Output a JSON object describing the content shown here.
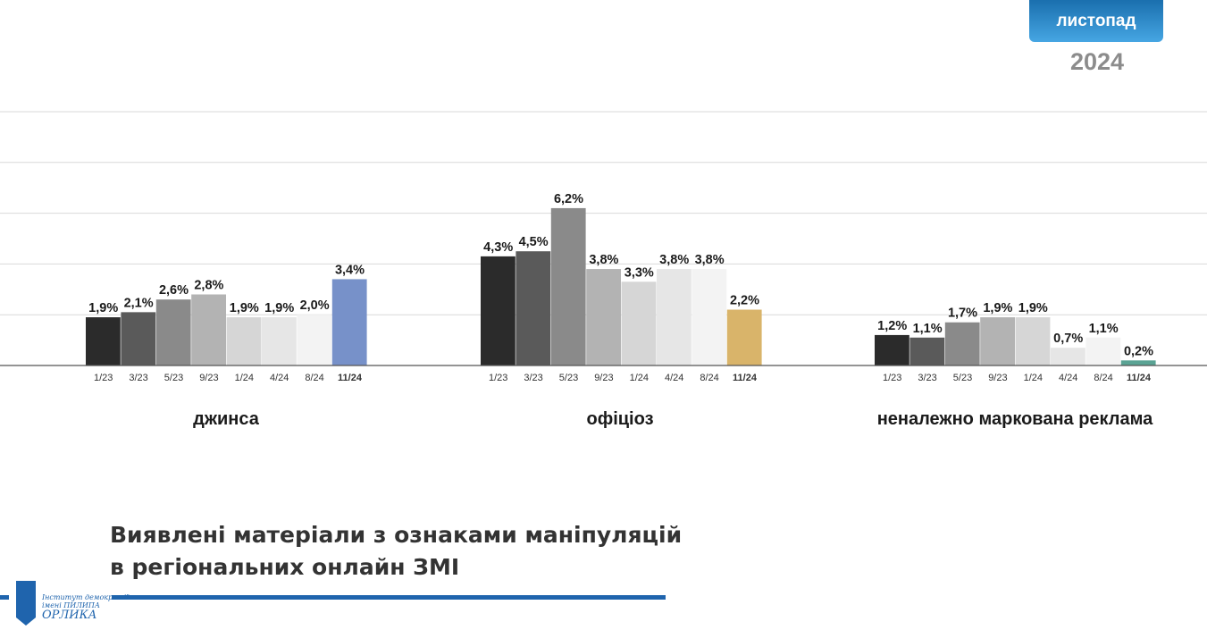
{
  "header": {
    "month": "листопад",
    "year": "2024"
  },
  "title": {
    "line1": "Виявлені матеріали з ознаками маніпуляцій",
    "line2": "в регіональних онлайн ЗМІ"
  },
  "logo": {
    "line1": "Інститут демократії",
    "line2": "імені ПИЛИПА",
    "line3": "ОРЛИКА"
  },
  "chart_data": {
    "type": "bar",
    "title": "Виявлені матеріали з ознаками маніпуляцій в регіональних онлайн ЗМІ",
    "ylim": [
      0,
      10
    ],
    "grid": true,
    "categories": [
      "1/23",
      "3/23",
      "5/23",
      "9/23",
      "1/24",
      "4/24",
      "8/24",
      "11/24"
    ],
    "series": [
      {
        "name": "джинса",
        "values": [
          1.9,
          2.1,
          2.6,
          2.8,
          1.9,
          1.9,
          2.0,
          3.4
        ],
        "labels": [
          "1,9%",
          "2,1%",
          "2,6%",
          "2,8%",
          "1,9%",
          "1,9%",
          "2,0%",
          "3,4%"
        ],
        "highlight_color": "#7791c9"
      },
      {
        "name": "офіціоз",
        "values": [
          4.3,
          4.5,
          6.2,
          3.8,
          3.3,
          3.8,
          3.8,
          2.2
        ],
        "labels": [
          "4,3%",
          "4,5%",
          "6,2%",
          "3,8%",
          "3,3%",
          "3,8%",
          "3,8%",
          "2,2%"
        ],
        "highlight_color": "#d9b46a"
      },
      {
        "name": "неналежно маркована реклама",
        "values": [
          1.2,
          1.1,
          1.7,
          1.9,
          1.9,
          0.7,
          1.1,
          0.2
        ],
        "labels": [
          "1,2%",
          "1,1%",
          "1,7%",
          "1,9%",
          "1,9%",
          "0,7%",
          "1,1%",
          "0,2%"
        ],
        "highlight_color": "#5aa394"
      }
    ],
    "category_colors": [
      "#2b2b2b",
      "#5a5a5a",
      "#8a8a8a",
      "#b3b3b3",
      "#d6d6d6",
      "#e6e6e6",
      "#f3f3f3"
    ],
    "highlighted_category": "11/24"
  }
}
